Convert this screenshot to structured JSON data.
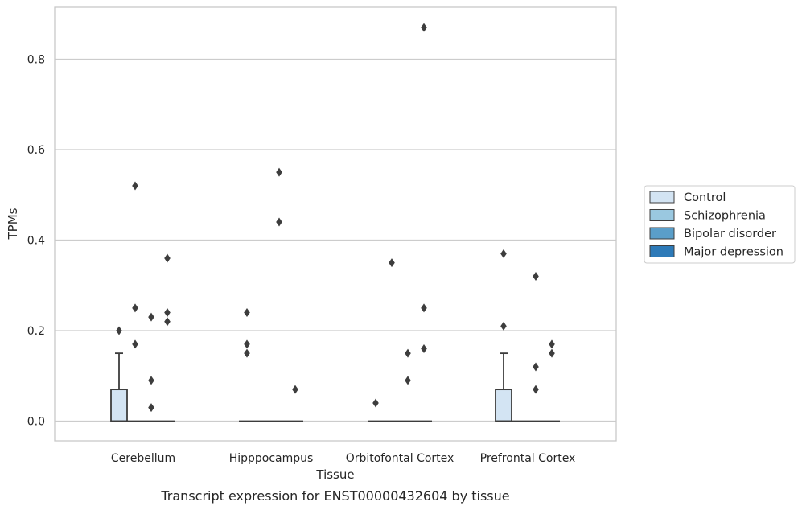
{
  "chart_data": {
    "type": "box",
    "xlabel": "Tissue",
    "ylabel": "TPMs",
    "caption": "Transcript expression for ENST00000432604 by tissue",
    "ylim": [
      -0.042,
      0.915
    ],
    "yticks": [
      "0.0",
      "0.2",
      "0.4",
      "0.6",
      "0.8"
    ],
    "yticks_values": [
      0.0,
      0.2,
      0.4,
      0.6,
      0.8
    ],
    "grid": "horizontal",
    "legend_position": "right",
    "categories": [
      "Cerebellum",
      "Hipppocampus",
      "Orbitofontal Cortex",
      "Prefrontal Cortex"
    ],
    "series": [
      {
        "name": "Control",
        "color": "#d3e4f3",
        "boxes": [
          {
            "q1": 0.0,
            "median": 0.0,
            "q3": 0.07,
            "whisker_low": 0.0,
            "whisker_high": 0.15,
            "outliers": [
              0.2
            ]
          },
          {
            "q1": 0.0,
            "median": 0.0,
            "q3": 0.0,
            "whisker_low": 0.0,
            "whisker_high": 0.0,
            "outliers": [
              0.15,
              0.17,
              0.24
            ]
          },
          {
            "q1": 0.0,
            "median": 0.0,
            "q3": 0.0,
            "whisker_low": 0.0,
            "whisker_high": 0.0,
            "outliers": [
              0.04
            ]
          },
          {
            "q1": 0.0,
            "median": 0.0,
            "q3": 0.07,
            "whisker_low": 0.0,
            "whisker_high": 0.15,
            "outliers": [
              0.21,
              0.37
            ]
          }
        ]
      },
      {
        "name": "Schizophrenia",
        "color": "#9ac8e0",
        "boxes": [
          {
            "q1": 0.0,
            "median": 0.0,
            "q3": 0.0,
            "whisker_low": 0.0,
            "whisker_high": 0.0,
            "outliers": [
              0.17,
              0.25,
              0.52
            ]
          },
          {
            "q1": 0.0,
            "median": 0.0,
            "q3": 0.0,
            "whisker_low": 0.0,
            "whisker_high": 0.0,
            "outliers": []
          },
          {
            "q1": 0.0,
            "median": 0.0,
            "q3": 0.0,
            "whisker_low": 0.0,
            "whisker_high": 0.0,
            "outliers": [
              0.35
            ]
          },
          {
            "q1": 0.0,
            "median": 0.0,
            "q3": 0.0,
            "whisker_low": 0.0,
            "whisker_high": 0.0,
            "outliers": []
          }
        ]
      },
      {
        "name": "Bipolar disorder",
        "color": "#5a9ec9",
        "boxes": [
          {
            "q1": 0.0,
            "median": 0.0,
            "q3": 0.0,
            "whisker_low": 0.0,
            "whisker_high": 0.0,
            "outliers": [
              0.03,
              0.09,
              0.23
            ]
          },
          {
            "q1": 0.0,
            "median": 0.0,
            "q3": 0.0,
            "whisker_low": 0.0,
            "whisker_high": 0.0,
            "outliers": [
              0.44,
              0.55
            ]
          },
          {
            "q1": 0.0,
            "median": 0.0,
            "q3": 0.0,
            "whisker_low": 0.0,
            "whisker_high": 0.0,
            "outliers": [
              0.09,
              0.15
            ]
          },
          {
            "q1": 0.0,
            "median": 0.0,
            "q3": 0.0,
            "whisker_low": 0.0,
            "whisker_high": 0.0,
            "outliers": [
              0.07,
              0.12,
              0.32
            ]
          }
        ]
      },
      {
        "name": "Major depression",
        "color": "#2d7ab8",
        "boxes": [
          {
            "q1": 0.0,
            "median": 0.0,
            "q3": 0.0,
            "whisker_low": 0.0,
            "whisker_high": 0.0,
            "outliers": [
              0.22,
              0.24,
              0.36
            ]
          },
          {
            "q1": 0.0,
            "median": 0.0,
            "q3": 0.0,
            "whisker_low": 0.0,
            "whisker_high": 0.0,
            "outliers": [
              0.07
            ]
          },
          {
            "q1": 0.0,
            "median": 0.0,
            "q3": 0.0,
            "whisker_low": 0.0,
            "whisker_high": 0.0,
            "outliers": [
              0.16,
              0.25,
              0.87
            ]
          },
          {
            "q1": 0.0,
            "median": 0.0,
            "q3": 0.0,
            "whisker_low": 0.0,
            "whisker_high": 0.0,
            "outliers": [
              0.15,
              0.17
            ]
          }
        ]
      }
    ]
  },
  "colors": {
    "grid": "#cccccc",
    "frame": "#c8c8c8",
    "line": "#3d3d3d",
    "text": "#262626"
  }
}
